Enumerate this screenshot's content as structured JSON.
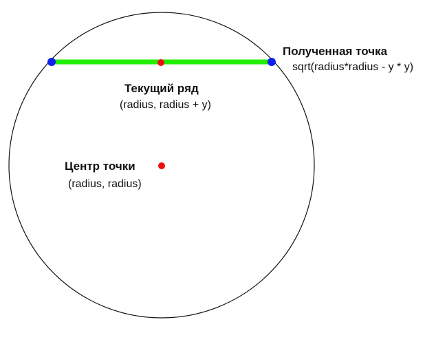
{
  "labels": {
    "found_point_title": "Полученная точка",
    "found_point_formula": "sqrt(radius*radius - y * y)",
    "current_row_title": "Текущий ряд",
    "current_row_formula": "(radius, radius + y)",
    "center_title": "Центр точки",
    "center_formula": "(radius, radius)"
  },
  "colors": {
    "circle": "#111111",
    "row_line": "#22ee00",
    "endpoint": "#1020ee",
    "center_dot": "#ee1010"
  }
}
